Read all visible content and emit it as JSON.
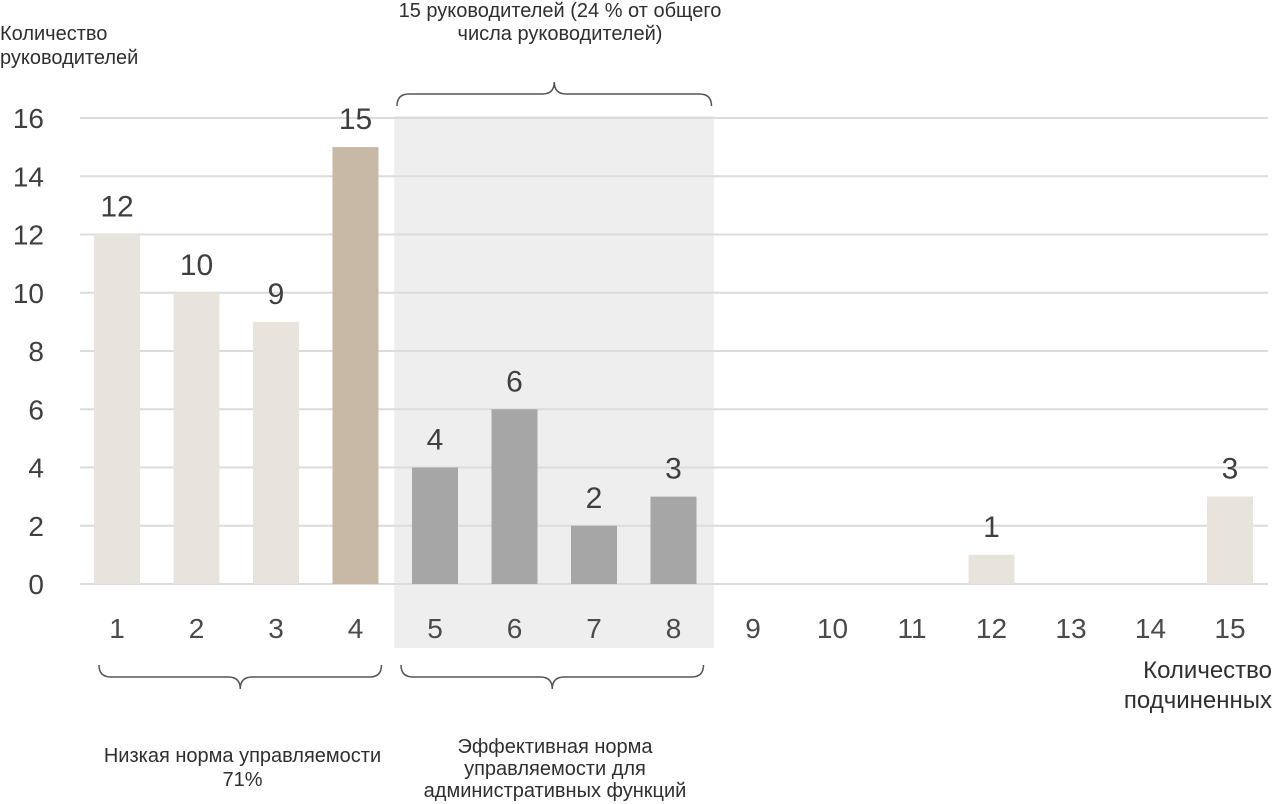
{
  "chart_data": {
    "type": "bar",
    "categories": [
      "1",
      "2",
      "3",
      "4",
      "5",
      "6",
      "7",
      "8",
      "9",
      "10",
      "11",
      "12",
      "13",
      "14",
      "15"
    ],
    "values": [
      12,
      10,
      9,
      15,
      4,
      6,
      2,
      3,
      0,
      0,
      0,
      1,
      0,
      0,
      3
    ],
    "data_labels": [
      "12",
      "10",
      "9",
      "15",
      "4",
      "6",
      "2",
      "3",
      "",
      "",
      "",
      "1",
      "",
      "",
      "3"
    ],
    "bar_colors": [
      "#e8e3dc",
      "#e8e3dc",
      "#e8e3dc",
      "#c8b8a6",
      "#a6a6a6",
      "#a6a6a6",
      "#a6a6a6",
      "#a6a6a6",
      "#e8e3dc",
      "#e8e3dc",
      "#e8e3dc",
      "#e8e3dc",
      "#e8e3dc",
      "#e8e3dc",
      "#e8e3dc"
    ],
    "yticks": [
      "0",
      "2",
      "4",
      "6",
      "8",
      "10",
      "12",
      "14",
      "16"
    ],
    "ylim": [
      0,
      16
    ],
    "grid": true,
    "ylabel": "Количество руководителей",
    "xlabel": "Количество подчиненных",
    "highlight_region": {
      "from_category": "5",
      "to_category": "8",
      "color": "#eeeeee"
    },
    "annotations": {
      "top": "15 руководителей (24 % от общего числа руководителей)",
      "low_span": "Низкая норма управляемости 71%",
      "effective_span": "Эффективная норма управляемости для административных функций"
    }
  }
}
